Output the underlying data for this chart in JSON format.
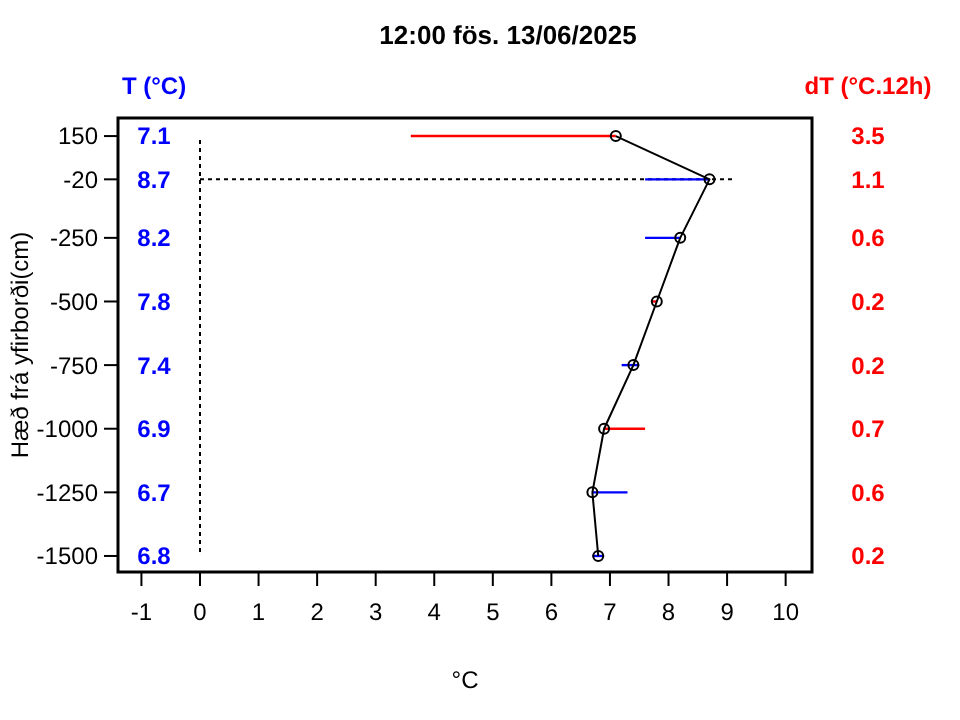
{
  "chart_data": {
    "type": "line",
    "title": "12:00   fös.  13/06/2025",
    "xlabel": "°C",
    "ylabel": "Hæð frá yfirborði(cm)",
    "annotations": [
      "T (°C)",
      "7.1",
      "8.7",
      "8.2",
      "7.8",
      "7.4",
      "6.9",
      "6.7",
      "6.8",
      "dT (°C.12h)",
      "3.5",
      "1.1",
      "0.6",
      "0.2",
      "0.2",
      "0.7",
      "0.6",
      "0.2"
    ],
    "xlim": [
      -1.4,
      10.45
    ],
    "xticks": [
      -1,
      0,
      1,
      2,
      3,
      4,
      5,
      6,
      7,
      8,
      9,
      10
    ],
    "ylim": [
      -1563,
      221
    ],
    "yticks": [
      150,
      -20,
      -250,
      -500,
      -750,
      -1000,
      -1250,
      -1500
    ],
    "ref_lines": [
      {
        "axis": "x",
        "value": 0,
        "line_style": "dotted",
        "color": "#000000"
      },
      {
        "axis": "y",
        "value": -20,
        "line_style": "dotted",
        "color": "#000000"
      }
    ],
    "marker": "circle",
    "line_style": "solid",
    "series": [
      {
        "color": "#000000",
        "x": [
          7.1,
          8.7,
          8.2,
          7.8,
          7.4,
          6.9,
          6.7,
          6.8
        ],
        "values": [
          150,
          -20,
          -250,
          -500,
          -750,
          -1000,
          -1250,
          -1500
        ],
        "colors": [
          "#ff0000",
          "#0000ff",
          "#0000ff",
          "#ff0000",
          "#0000ff",
          "#ff0000",
          "#0000ff",
          "#0000ff"
        ],
        "xerrors": [
          [
            3.6,
            7.1
          ],
          [
            7.6,
            8.7
          ],
          [
            7.6,
            8.2
          ],
          [
            7.7,
            7.8
          ],
          [
            7.2,
            7.5
          ],
          [
            6.9,
            7.6
          ],
          [
            6.7,
            7.3
          ],
          [
            6.7,
            6.9
          ]
        ]
      }
    ]
  }
}
